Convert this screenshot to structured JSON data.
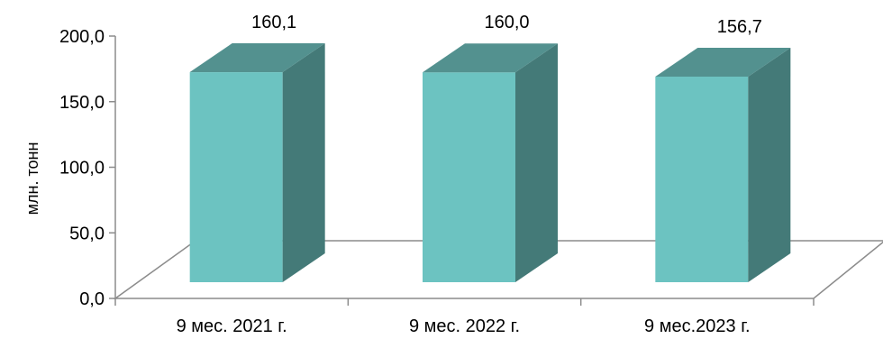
{
  "chart_data": {
    "type": "bar",
    "categories": [
      "9 мес. 2021 г.",
      "9 мес. 2022 г.",
      "9 мес.2023 г."
    ],
    "values": [
      160.1,
      160.0,
      156.7
    ],
    "data_labels": [
      "160,1",
      "160,0",
      "156,7"
    ],
    "title": "",
    "xlabel": "",
    "ylabel": "млн. тонн",
    "ylim": [
      0,
      200
    ],
    "yticks": [
      "0,0",
      "50,0",
      "100,0",
      "150,0",
      "200,0"
    ],
    "grid": false,
    "legend": "none",
    "style": "3d-columns",
    "colors": {
      "front": "#6cc3c1",
      "side": "#447a78",
      "top": "#53918f",
      "axis": "#8c8c8c"
    }
  }
}
